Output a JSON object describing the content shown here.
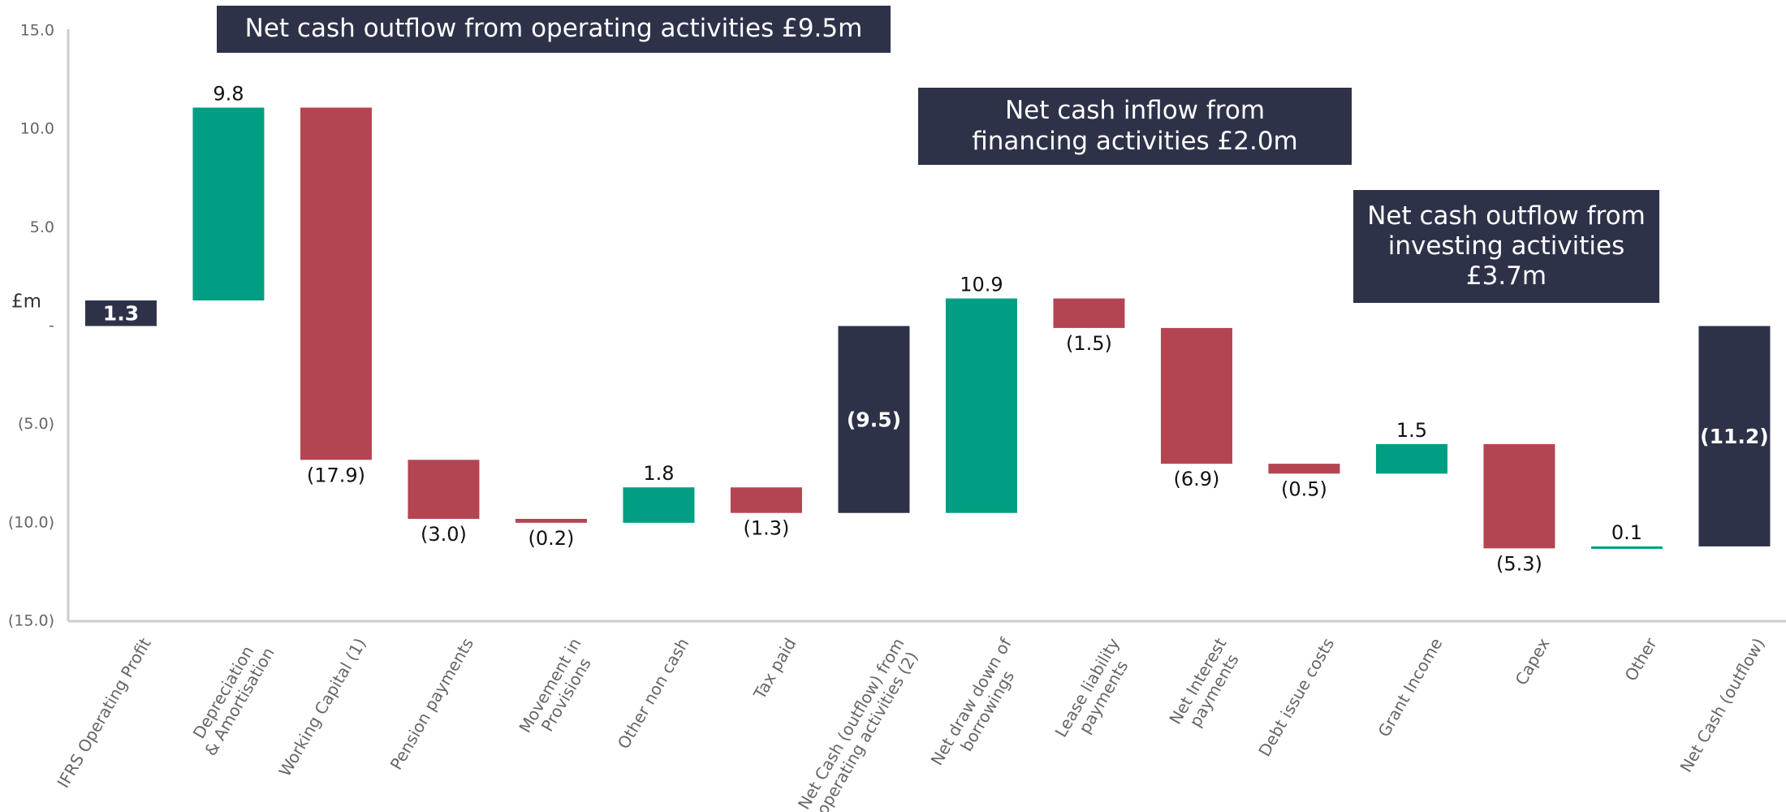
{
  "chart_data": {
    "type": "waterfall",
    "ylabel": "£m",
    "categories": [
      "IFRS Operating Profit",
      "Depreciation\n& Amortisation",
      "Working Capital (1)",
      "Pension payments",
      "Movement in\nProvisions",
      "Other non cash",
      "Tax paid",
      "Net Cash (outflow) from\noperating activities (2)",
      "Net draw down of\nborrowings",
      "Lease liability\npayments",
      "Net Interest\npayments",
      "Debt issue costs",
      "Grant Income",
      "Capex",
      "Other",
      "Net Cash (outflow)"
    ],
    "values": [
      1.3,
      9.8,
      -17.9,
      -3.0,
      -0.2,
      1.8,
      -1.3,
      -9.5,
      10.9,
      -1.5,
      -6.9,
      -0.5,
      1.5,
      -5.3,
      0.1,
      -11.2
    ],
    "value_labels": [
      "1.3",
      "9.8",
      "(17.9)",
      "(3.0)",
      "(0.2)",
      "1.8",
      "(1.3)",
      "(9.5)",
      "10.9",
      "(1.5)",
      "(6.9)",
      "(0.5)",
      "1.5",
      "(5.3)",
      "0.1",
      "(11.2)"
    ],
    "measure": [
      "absolute",
      "relative",
      "relative",
      "relative",
      "relative",
      "relative",
      "relative",
      "total",
      "relative",
      "relative",
      "relative",
      "relative",
      "relative",
      "relative",
      "relative",
      "total"
    ],
    "colors": [
      "#2e3249",
      "#009e82",
      "#b34553",
      "#b34553",
      "#b34553",
      "#009e82",
      "#b34553",
      "#2e3249",
      "#009e82",
      "#b34553",
      "#b34553",
      "#b34553",
      "#009e82",
      "#b34553",
      "#009e82",
      "#2e3249"
    ],
    "ylim": [
      -15,
      15
    ],
    "yticks": [
      {
        "value": 15,
        "label": "15.0"
      },
      {
        "value": 10,
        "label": "10.0"
      },
      {
        "value": 5,
        "label": "5.0"
      },
      {
        "value": 0,
        "label": "-"
      },
      {
        "value": -5,
        "label": "(5.0)"
      },
      {
        "value": -10,
        "label": "(10.0)"
      },
      {
        "value": -15,
        "label": "(15.0)"
      }
    ],
    "annotations": [
      {
        "text": "Net cash outflow from operating activities £9.5m"
      },
      {
        "text": "Net cash inflow from\nfinancing activities £2.0m"
      },
      {
        "text": "Net cash outflow from\ninvesting activities\n£3.7m"
      }
    ]
  }
}
